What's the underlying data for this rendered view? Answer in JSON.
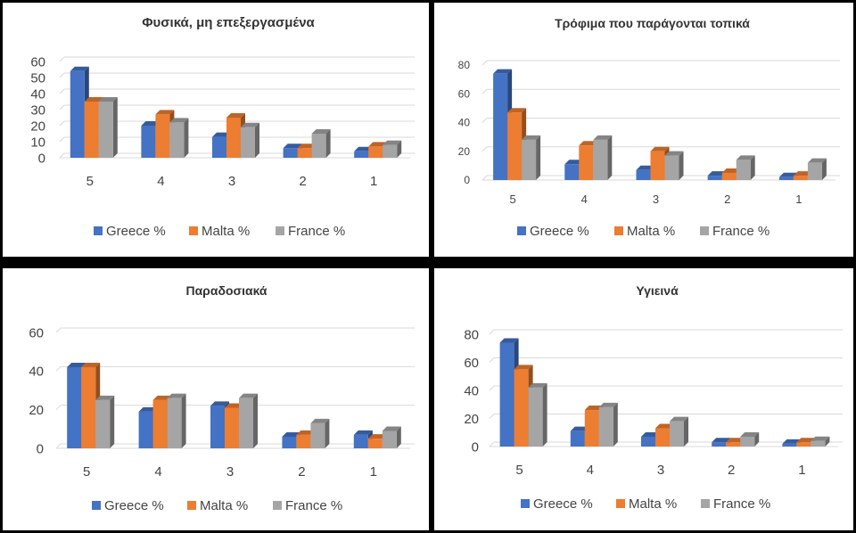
{
  "colors": {
    "greece": "#4472C4",
    "malta": "#ED7D31",
    "france": "#A5A5A5",
    "background": "#000000"
  },
  "chart_data": [
    {
      "type": "bar",
      "title": "Φυσικά, μη επεξεργασμένα",
      "categories": [
        "5",
        "4",
        "3",
        "2",
        "1"
      ],
      "series": [
        {
          "name": "Greece %",
          "values": [
            54,
            20,
            13,
            6,
            4
          ]
        },
        {
          "name": "Malta %",
          "values": [
            35,
            27,
            25,
            6,
            7
          ]
        },
        {
          "name": "France %",
          "values": [
            35,
            22,
            19,
            15,
            8
          ]
        }
      ],
      "ylim": [
        0,
        60
      ],
      "yticks": [
        0,
        10,
        20,
        30,
        40,
        50,
        60
      ],
      "grid": true,
      "legend": "bottom"
    },
    {
      "type": "bar",
      "title": "Τρόφιμα που παράγονται τοπικά",
      "categories": [
        "5",
        "4",
        "3",
        "2",
        "1"
      ],
      "series": [
        {
          "name": "Greece %",
          "values": [
            74,
            11,
            7,
            3,
            2
          ]
        },
        {
          "name": "Malta %",
          "values": [
            47,
            24,
            20,
            5,
            3
          ]
        },
        {
          "name": "France %",
          "values": [
            28,
            28,
            17,
            14,
            12
          ]
        }
      ],
      "ylim": [
        0,
        80
      ],
      "yticks": [
        0,
        20,
        40,
        60,
        80
      ],
      "grid": true,
      "legend": "bottom"
    },
    {
      "type": "bar",
      "title": "Παραδοσιακά",
      "categories": [
        "5",
        "4",
        "3",
        "2",
        "1"
      ],
      "series": [
        {
          "name": "Greece %",
          "values": [
            42,
            19,
            22,
            6,
            7
          ]
        },
        {
          "name": "Malta %",
          "values": [
            42,
            25,
            21,
            7,
            5
          ]
        },
        {
          "name": "France %",
          "values": [
            25,
            26,
            26,
            13,
            9
          ]
        }
      ],
      "ylim": [
        0,
        60
      ],
      "yticks": [
        0,
        20,
        40,
        60
      ],
      "grid": true,
      "legend": "bottom"
    },
    {
      "type": "bar",
      "title": "Υγιεινά",
      "categories": [
        "5",
        "4",
        "3",
        "2",
        "1"
      ],
      "series": [
        {
          "name": "Greece %",
          "values": [
            74,
            11,
            7,
            3,
            2
          ]
        },
        {
          "name": "Malta %",
          "values": [
            55,
            26,
            13,
            3,
            3
          ]
        },
        {
          "name": "France %",
          "values": [
            42,
            28,
            18,
            7,
            4
          ]
        }
      ],
      "ylim": [
        0,
        80
      ],
      "yticks": [
        0,
        20,
        40,
        60,
        80
      ],
      "grid": true,
      "legend": "bottom"
    }
  ]
}
